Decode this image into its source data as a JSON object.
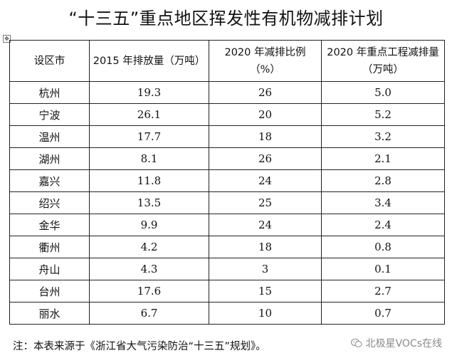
{
  "title": "“十三五”重点地区挥发性有机物减排计划",
  "table": {
    "headers": [
      "设区市",
      "2015 年排放量（万吨）",
      "2020 年减排比例（%）",
      "2020 年重点工程减排量（万吨）"
    ],
    "rows": [
      [
        "杭州",
        "19.3",
        "26",
        "5.0"
      ],
      [
        "宁波",
        "26.1",
        "20",
        "5.2"
      ],
      [
        "温州",
        "17.7",
        "18",
        "3.2"
      ],
      [
        "湖州",
        "8.1",
        "26",
        "2.1"
      ],
      [
        "嘉兴",
        "11.8",
        "24",
        "2.8"
      ],
      [
        "绍兴",
        "13.5",
        "25",
        "3.4"
      ],
      [
        "金华",
        "9.9",
        "24",
        "2.4"
      ],
      [
        "衢州",
        "4.2",
        "18",
        "0.8"
      ],
      [
        "舟山",
        "4.3",
        "3",
        "0.1"
      ],
      [
        "台州",
        "17.6",
        "15",
        "2.7"
      ],
      [
        "丽水",
        "6.7",
        "10",
        "0.7"
      ]
    ]
  },
  "note": "注：本表来源于《浙江省大气污染防治“十三五”规划》。",
  "watermark": "北极星VOCs在线",
  "icons": {
    "move_handle": "move-handle-icon",
    "watermark_logo": "wechat-account-icon"
  }
}
